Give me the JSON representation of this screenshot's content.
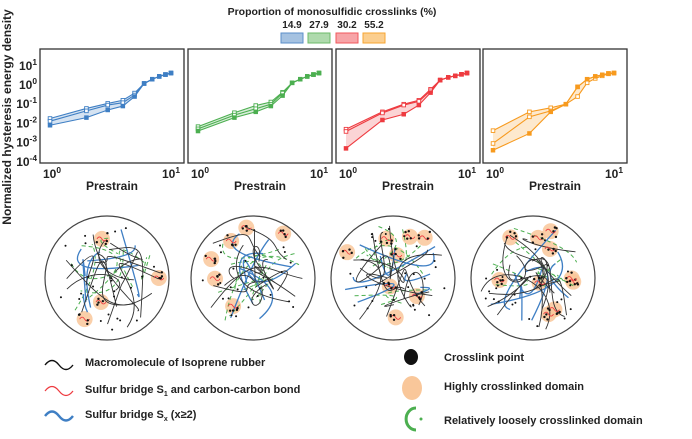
{
  "legend_top": {
    "title": "Proportion of monosulfidic crosslinks (%)",
    "items": [
      {
        "label": "14.9",
        "color": "#5b8fc9"
      },
      {
        "label": "27.9",
        "color": "#6dbb6a"
      },
      {
        "label": "30.2",
        "color": "#f0595e"
      },
      {
        "label": "55.2",
        "color": "#f7a531"
      }
    ]
  },
  "chart_data": [
    {
      "type": "line",
      "xlabel": "Prestrain",
      "ylabel": "Normalized hysteresis energy density",
      "xscale": "log",
      "yscale": "log",
      "xlim": [
        1,
        10
      ],
      "ylim": [
        0.0001,
        10
      ],
      "x_ticks": [
        "10^0",
        "10^1"
      ],
      "y_ticks": [
        "10^-4",
        "10^-3",
        "10^-2",
        "10^-1",
        "10^0",
        "10^1"
      ],
      "color": "#3f7fc4",
      "shaded_band": true,
      "x": [
        1,
        2,
        3,
        4,
        5,
        6,
        7,
        8,
        9,
        10
      ],
      "series": [
        {
          "values": [
            0.018,
            0.06,
            0.11,
            0.16,
            0.38,
            1.2,
            2.0,
            2.8,
            3.5,
            4.2
          ]
        },
        {
          "values": [
            0.013,
            0.045,
            0.09,
            0.12,
            0.3,
            1.2,
            2.0,
            2.8,
            3.5,
            4.2
          ]
        },
        {
          "values": [
            0.008,
            0.02,
            0.05,
            0.08,
            0.25,
            1.2,
            2.0,
            2.8,
            3.5,
            4.2
          ]
        }
      ]
    },
    {
      "type": "line",
      "xlabel": "Prestrain",
      "xscale": "log",
      "yscale": "log",
      "xlim": [
        1,
        10
      ],
      "ylim": [
        0.0001,
        10
      ],
      "x_ticks": [
        "10^0",
        "10^1"
      ],
      "color": "#4caf50",
      "shaded_band": true,
      "x": [
        1,
        2,
        3,
        4,
        5,
        6,
        7,
        8,
        9,
        10
      ],
      "series": [
        {
          "values": [
            0.0068,
            0.036,
            0.085,
            0.13,
            0.42,
            1.3,
            2.0,
            2.8,
            3.5,
            4.2
          ]
        },
        {
          "values": [
            0.0052,
            0.027,
            0.058,
            0.1,
            0.38,
            1.3,
            2.0,
            2.8,
            3.5,
            4.2
          ]
        },
        {
          "values": [
            0.004,
            0.02,
            0.04,
            0.08,
            0.28,
            1.3,
            2.0,
            2.8,
            3.5,
            4.2
          ]
        }
      ]
    },
    {
      "type": "line",
      "xlabel": "Prestrain",
      "xscale": "log",
      "yscale": "log",
      "xlim": [
        1,
        10
      ],
      "ylim": [
        0.0001,
        10
      ],
      "x_ticks": [
        "10^0",
        "10^1"
      ],
      "color": "#ee3b40",
      "shaded_band": true,
      "x": [
        1,
        2,
        3,
        4,
        5,
        6,
        7,
        8,
        9,
        10
      ],
      "series": [
        {
          "values": [
            0.005,
            0.04,
            0.1,
            0.16,
            0.6,
            1.8,
            2.5,
            3.0,
            3.6,
            4.2
          ]
        },
        {
          "values": [
            0.0038,
            0.035,
            0.09,
            0.14,
            0.5,
            1.8,
            2.5,
            3.0,
            3.6,
            4.2
          ]
        },
        {
          "values": [
            0.0005,
            0.015,
            0.03,
            0.09,
            0.4,
            1.8,
            2.5,
            3.0,
            3.6,
            4.2
          ]
        }
      ]
    },
    {
      "type": "line",
      "xlabel": "Prestrain",
      "xscale": "log",
      "yscale": "log",
      "xlim": [
        1,
        10
      ],
      "ylim": [
        0.0001,
        10
      ],
      "x_ticks": [
        "10^0",
        "10^1"
      ],
      "color": "#f79a1e",
      "shaded_band": true,
      "x": [
        1,
        2,
        3,
        4,
        5,
        6,
        7,
        8,
        9,
        10
      ],
      "series": [
        {
          "values": [
            0.0042,
            0.04,
            0.065,
            0.1,
            0.8,
            2.0,
            2.8,
            3.4,
            4.0,
            4.2
          ]
        },
        {
          "values": [
            0.0009,
            0.022,
            0.045,
            0.1,
            0.25,
            1.3,
            2.2,
            3.0,
            3.8,
            4.2
          ]
        },
        {
          "values": [
            0.0004,
            0.003,
            0.04,
            0.1,
            0.8,
            2.0,
            2.8,
            3.4,
            4.0,
            4.2
          ]
        }
      ]
    }
  ],
  "diagrams": [
    {
      "highly_crosslinked_domains": 4
    },
    {
      "highly_crosslinked_domains": 6
    },
    {
      "highly_crosslinked_domains": 8
    },
    {
      "highly_crosslinked_domains": 10
    }
  ],
  "legend_bottom": {
    "macromolecule": "Macromolecule of Isoprene rubber",
    "s1_prefix": "Sulfur bridge S",
    "s1_sub": "1",
    "s1_suffix": " and carbon-carbon bond",
    "sx_prefix": "Sulfur bridge S",
    "sx_sub": "x",
    "sx_suffix": " (x≥2)",
    "crosslink_point": "Crosslink point",
    "highly_domain": "Highly crosslinked domain",
    "loose_domain": "Relatively loosely crosslinked domain",
    "colors": {
      "macromolecule": "#111111",
      "s1": "#ee3b40",
      "sx": "#3f7fc4",
      "crosslink": "#111111",
      "highly": "#f9c79a",
      "loose": "#4caf50"
    }
  }
}
